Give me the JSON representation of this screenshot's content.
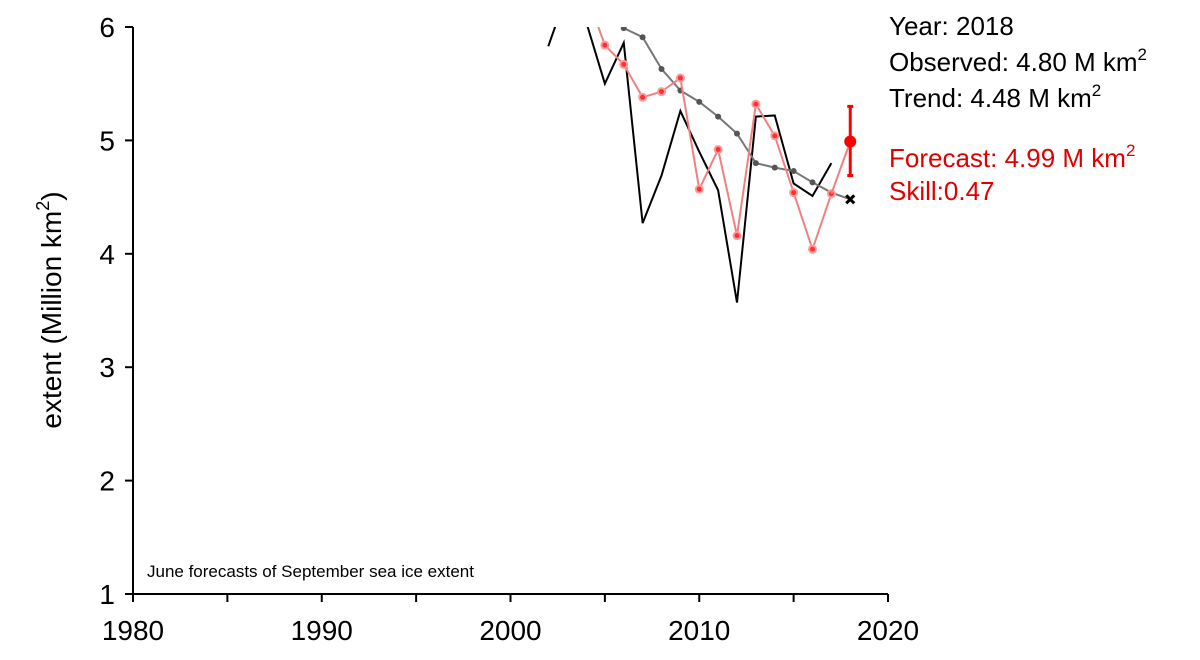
{
  "chart_data": {
    "type": "line",
    "xlim": [
      1980,
      2020
    ],
    "ylim": [
      1,
      6
    ],
    "x_ticks": [
      1980,
      1990,
      2000,
      2010,
      2020
    ],
    "y_ticks": [
      1,
      2,
      3,
      4,
      5,
      6
    ],
    "ylabel": "extent (Million km",
    "ylabel_sup": "2",
    "ylabel_close": ")",
    "annotation": "June forecasts of September sea ice extent",
    "info": {
      "year": "Year: 2018",
      "observed": "Observed: 4.80 M km",
      "trend": "Trend: 4.48 M km",
      "forecast": "Forecast: 4.99 M km",
      "skill": "Skill:0.47",
      "sup": "2"
    },
    "colors": {
      "observed": "#000000",
      "trend": "#777777",
      "forecast": "#f08080",
      "forecast_point": "#ff0000",
      "forecast_text": "#e00000"
    },
    "series": [
      {
        "x": [
          2002,
          2003,
          2004,
          2005,
          2006,
          2007,
          2008,
          2009,
          2010,
          2011,
          2012,
          2013,
          2014,
          2015,
          2016,
          2017
        ],
        "y": [
          5.83,
          6.3,
          6.05,
          5.5,
          5.86,
          4.27,
          4.69,
          5.26,
          4.9,
          4.56,
          3.57,
          5.21,
          5.22,
          4.62,
          4.51,
          4.8
        ]
      },
      {
        "x": [
          2006,
          2007,
          2008,
          2009,
          2010,
          2011,
          2012,
          2013,
          2014,
          2015,
          2016,
          2017,
          2018
        ],
        "y": [
          5.99,
          5.91,
          5.63,
          5.44,
          5.34,
          5.21,
          5.06,
          4.8,
          4.76,
          4.73,
          4.63,
          4.54,
          4.48
        ]
      },
      {
        "x": [
          2004,
          2005,
          2006,
          2007,
          2008,
          2009,
          2010,
          2011,
          2012,
          2013,
          2014,
          2015,
          2016,
          2017
        ],
        "y": [
          6.3,
          5.84,
          5.67,
          5.38,
          5.43,
          5.55,
          4.57,
          4.92,
          4.16,
          5.32,
          5.04,
          4.54,
          4.04,
          4.53
        ]
      }
    ],
    "forecast": {
      "x": 2018,
      "value": 4.99,
      "err_low": 4.69,
      "err_high": 5.3
    },
    "trend_point": {
      "x": 2018,
      "value": 4.48
    }
  }
}
